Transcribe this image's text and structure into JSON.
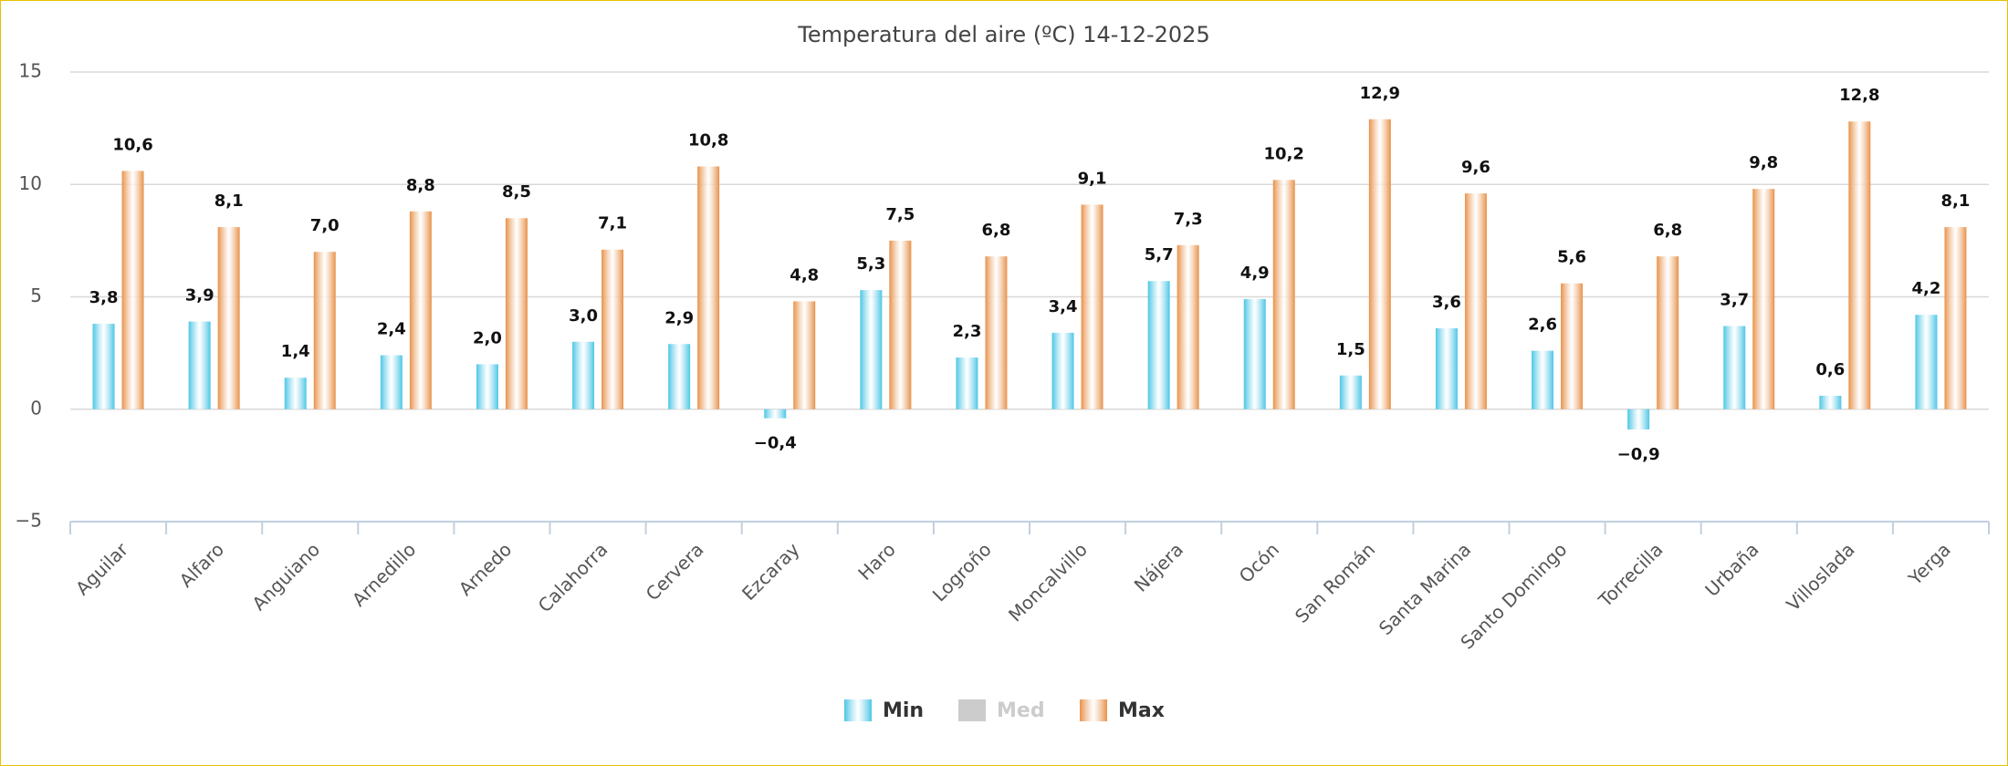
{
  "chart_data": {
    "type": "bar",
    "title": "Temperatura del aire (ºC) 14-12-2025",
    "categories": [
      "Aguilar",
      "Alfaro",
      "Anguiano",
      "Arnedillo",
      "Arnedo",
      "Calahorra",
      "Cervera",
      "Ezcaray",
      "Haro",
      "Logroño",
      "Moncalvillo",
      "Nájera",
      "Ocón",
      "San Román",
      "Santa Marina",
      "Santo Domingo",
      "Torrecilla",
      "Urbaña",
      "Villoslada",
      "Yerga"
    ],
    "series": [
      {
        "name": "Min",
        "color": "#4cc6e6",
        "values": [
          3.8,
          3.9,
          1.4,
          2.4,
          2.0,
          3.0,
          2.9,
          -0.4,
          5.3,
          2.3,
          3.4,
          5.7,
          4.9,
          1.5,
          3.6,
          2.6,
          -0.9,
          3.7,
          0.6,
          4.2
        ],
        "value_labels": [
          "3,8",
          "3,9",
          "1,4",
          "2,4",
          "2,0",
          "3,0",
          "2,9",
          "−0,4",
          "5,3",
          "2,3",
          "3,4",
          "5,7",
          "4,9",
          "1,5",
          "3,6",
          "2,6",
          "−0,9",
          "3,7",
          "0,6",
          "4,2"
        ]
      },
      {
        "name": "Med",
        "color": "#cccccc",
        "hidden": true,
        "values": [
          null,
          null,
          null,
          null,
          null,
          null,
          null,
          null,
          null,
          null,
          null,
          null,
          null,
          null,
          null,
          null,
          null,
          null,
          null,
          null
        ]
      },
      {
        "name": "Max",
        "color": "#e8924a",
        "values": [
          10.6,
          8.1,
          7.0,
          8.8,
          8.5,
          7.1,
          10.8,
          4.8,
          7.5,
          6.8,
          9.1,
          7.3,
          10.2,
          12.9,
          9.6,
          5.6,
          6.8,
          9.8,
          12.8,
          8.1
        ],
        "value_labels": [
          "10,6",
          "8,1",
          "7,0",
          "8,8",
          "8,5",
          "7,1",
          "10,8",
          "4,8",
          "7,5",
          "6,8",
          "9,1",
          "7,3",
          "10,2",
          "12,9",
          "9,6",
          "5,6",
          "6,8",
          "9,8",
          "12,8",
          "8,1"
        ]
      }
    ],
    "ylim": [
      -5,
      15
    ],
    "yticks": [
      {
        "value": -5,
        "label": "−5"
      },
      0,
      5,
      10,
      15
    ],
    "grid": true
  }
}
